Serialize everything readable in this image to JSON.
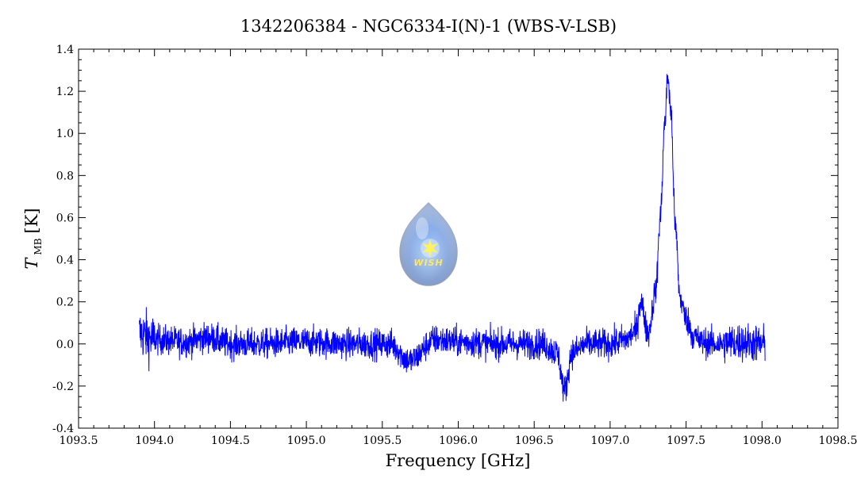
{
  "chart_data": {
    "type": "line",
    "title": "1342206384 - NGC6334-I(N)-1 (WBS-V-LSB)",
    "xlabel": "Frequency [GHz]",
    "ylabel": {
      "symbol": "T",
      "subscript": "MB",
      "unit": "[K]"
    },
    "xlim": [
      1093.5,
      1098.5
    ],
    "ylim": [
      -0.4,
      1.4
    ],
    "x_ticks": [
      "1093.5",
      "1094.0",
      "1094.5",
      "1095.0",
      "1095.5",
      "1096.0",
      "1096.5",
      "1097.0",
      "1097.5",
      "1098.0",
      "1098.5"
    ],
    "y_ticks": [
      "-0.4",
      "-0.2",
      "0.0",
      "0.2",
      "0.4",
      "0.6",
      "0.8",
      "1.0",
      "1.2",
      "1.4"
    ],
    "series_color": "#0000ff",
    "series": [
      {
        "x": [
          1093.9,
          1094.0,
          1094.2,
          1094.35,
          1094.5,
          1094.7,
          1095.0,
          1095.3,
          1095.55,
          1095.68,
          1095.85,
          1096.0,
          1096.3,
          1096.55,
          1096.65,
          1096.7,
          1096.75,
          1096.85,
          1097.0,
          1097.1,
          1097.17,
          1097.2,
          1097.25,
          1097.3,
          1097.33,
          1097.36,
          1097.38,
          1097.4,
          1097.43,
          1097.46,
          1097.5,
          1097.55,
          1097.6,
          1097.7,
          1097.85,
          1098.02
        ],
        "y": [
          0.05,
          0.02,
          0.01,
          0.03,
          0.0,
          0.0,
          0.01,
          0.0,
          0.0,
          -0.08,
          0.02,
          0.01,
          0.0,
          0.0,
          -0.04,
          -0.22,
          -0.04,
          0.0,
          0.0,
          0.02,
          0.06,
          0.2,
          0.05,
          0.25,
          0.6,
          1.05,
          1.27,
          1.1,
          0.55,
          0.22,
          0.12,
          0.04,
          0.01,
          0.0,
          0.01,
          0.0
        ]
      }
    ],
    "grid": false,
    "legend": "none"
  },
  "logo": {
    "text": "WISH",
    "icon": "water-drop-star-icon"
  }
}
